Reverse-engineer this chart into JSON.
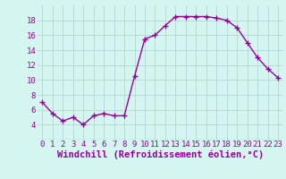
{
  "x": [
    0,
    1,
    2,
    3,
    4,
    5,
    6,
    7,
    8,
    9,
    10,
    11,
    12,
    13,
    14,
    15,
    16,
    17,
    18,
    19,
    20,
    21,
    22,
    23
  ],
  "y": [
    7.0,
    5.5,
    4.5,
    5.0,
    4.0,
    5.2,
    5.5,
    5.2,
    5.2,
    10.5,
    15.5,
    16.0,
    17.3,
    18.5,
    18.5,
    18.5,
    18.5,
    18.3,
    18.0,
    17.0,
    15.0,
    13.0,
    11.5,
    10.3
  ],
  "line_color": "#990099",
  "marker": "+",
  "marker_size": 4,
  "background_color": "#d5f5f0",
  "grid_color": "#b0d8d8",
  "xlabel": "Windchill (Refroidissement éolien,°C)",
  "xlabel_fontsize": 7.5,
  "xlim": [
    -0.5,
    23.5
  ],
  "ylim": [
    2,
    20
  ],
  "yticks": [
    4,
    6,
    8,
    10,
    12,
    14,
    16,
    18
  ],
  "xticks": [
    0,
    1,
    2,
    3,
    4,
    5,
    6,
    7,
    8,
    9,
    10,
    11,
    12,
    13,
    14,
    15,
    16,
    17,
    18,
    19,
    20,
    21,
    22,
    23
  ],
  "tick_fontsize": 6.5,
  "linewidth": 1.0
}
